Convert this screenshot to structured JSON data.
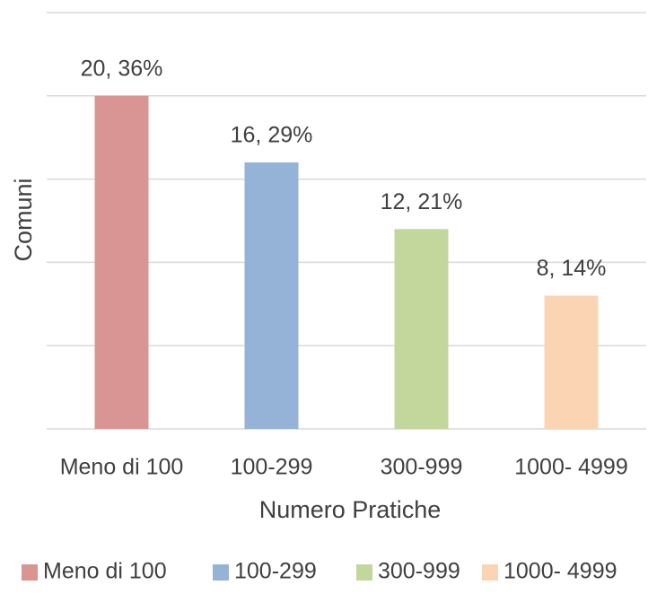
{
  "chart_data": {
    "type": "bar",
    "x_label": "Numero Pratiche",
    "y_label": "Comuni",
    "categories": [
      "Meno di 100",
      "100-299",
      "300-999",
      "1000- 4999"
    ],
    "values": [
      20,
      16,
      12,
      8
    ],
    "value_labels": [
      "20, 36%",
      "16, 29%",
      "12, 21%",
      "8, 14%"
    ],
    "colors": [
      "#d99594",
      "#95b3d7",
      "#c3d69b",
      "#fbd4b4"
    ],
    "ylim": [
      0,
      25
    ],
    "yticks": [
      0,
      5,
      10,
      15,
      20,
      25
    ],
    "grid": true,
    "legend": "bottom"
  }
}
